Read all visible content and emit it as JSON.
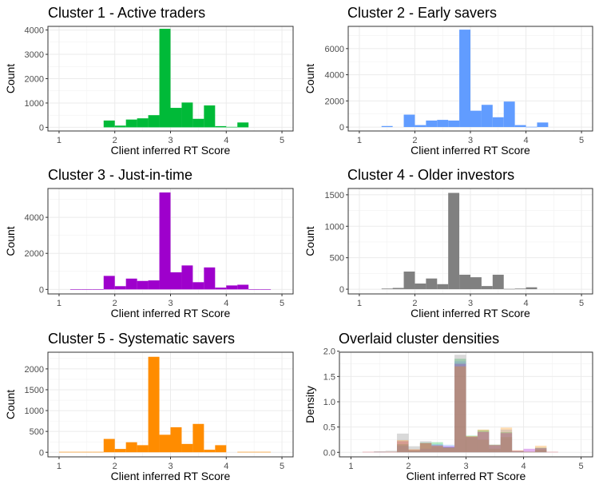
{
  "chart_data": [
    {
      "type": "bar",
      "title": "Cluster 1 - Active traders",
      "xlabel": "Client inferred RT Score",
      "ylabel": "Count",
      "color": "#00BA38",
      "xlim": [
        0.8,
        5.2
      ],
      "ylim": [
        -150,
        4150
      ],
      "xticks": [
        1,
        2,
        3,
        4,
        5
      ],
      "yticks": [
        0,
        1000,
        2000,
        3000,
        4000
      ],
      "ytick_labels": [
        "0",
        "1000",
        "2000",
        "3000",
        "4000"
      ],
      "bin_width": 0.2,
      "bins": [
        1.9,
        2.1,
        2.3,
        2.5,
        2.7,
        2.9,
        3.1,
        3.3,
        3.5,
        3.7,
        3.9,
        4.1,
        4.3,
        4.5
      ],
      "values": [
        280,
        70,
        320,
        370,
        500,
        4050,
        800,
        1020,
        350,
        900,
        50,
        20,
        200,
        0
      ]
    },
    {
      "type": "bar",
      "title": "Cluster 2 - Early savers",
      "xlabel": "Client inferred RT Score",
      "ylabel": "Count",
      "color": "#619CFF",
      "xlim": [
        0.8,
        5.2
      ],
      "ylim": [
        -300,
        7700
      ],
      "xticks": [
        1,
        2,
        3,
        4,
        5
      ],
      "yticks": [
        0,
        2000,
        4000,
        6000
      ],
      "ytick_labels": [
        "0",
        "2000",
        "4000",
        "6000"
      ],
      "bin_width": 0.2,
      "bins": [
        1.5,
        1.7,
        1.9,
        2.1,
        2.3,
        2.5,
        2.7,
        2.9,
        3.1,
        3.3,
        3.5,
        3.7,
        3.9,
        4.1,
        4.3,
        4.5
      ],
      "values": [
        80,
        0,
        950,
        150,
        500,
        550,
        500,
        7450,
        1250,
        1700,
        750,
        1950,
        150,
        20,
        350,
        0
      ]
    },
    {
      "type": "bar",
      "title": "Cluster 3 - Just-in-time",
      "xlabel": "Client inferred RT Score",
      "ylabel": "Count",
      "color": "#9E00CC",
      "xlim": [
        0.8,
        5.2
      ],
      "ylim": [
        -250,
        5600
      ],
      "xticks": [
        1,
        2,
        3,
        4,
        5
      ],
      "yticks": [
        0,
        2000,
        4000
      ],
      "ytick_labels": [
        "0",
        "2000",
        "4000"
      ],
      "bin_width": 0.2,
      "bins": [
        1.3,
        1.5,
        1.7,
        1.9,
        2.1,
        2.3,
        2.5,
        2.7,
        2.9,
        3.1,
        3.3,
        3.5,
        3.7,
        3.9,
        4.1,
        4.3,
        4.5,
        4.7
      ],
      "values": [
        15,
        15,
        15,
        750,
        180,
        600,
        470,
        500,
        5380,
        950,
        1330,
        400,
        1220,
        100,
        220,
        260,
        15,
        15
      ]
    },
    {
      "type": "bar",
      "title": "Cluster 4 - Older investors",
      "xlabel": "Client inferred RT Score",
      "ylabel": "Count",
      "color": "#808080",
      "xlim": [
        0.8,
        5.2
      ],
      "ylim": [
        -75,
        1600
      ],
      "xticks": [
        1,
        2,
        3,
        4,
        5
      ],
      "yticks": [
        0,
        500,
        1000,
        1500
      ],
      "ytick_labels": [
        "0",
        "500",
        "1000",
        "1500"
      ],
      "bin_width": 0.2,
      "bins": [
        1.5,
        1.7,
        1.9,
        2.1,
        2.3,
        2.5,
        2.7,
        2.9,
        3.1,
        3.3,
        3.5,
        3.7,
        3.9,
        4.1,
        4.3,
        4.5
      ],
      "values": [
        10,
        20,
        280,
        90,
        170,
        80,
        1530,
        230,
        190,
        50,
        230,
        5,
        10,
        30,
        0,
        0
      ]
    },
    {
      "type": "bar",
      "title": "Cluster 5 - Systematic savers",
      "xlabel": "Client inferred RT Score",
      "ylabel": "Count",
      "color": "#FF8C00",
      "xlim": [
        0.8,
        5.2
      ],
      "ylim": [
        -110,
        2400
      ],
      "xticks": [
        1,
        2,
        3,
        4,
        5
      ],
      "yticks": [
        0,
        500,
        1000,
        1500,
        2000
      ],
      "ytick_labels": [
        "0",
        "500",
        "1000",
        "1500",
        "2000"
      ],
      "bin_width": 0.2,
      "bins": [
        1.1,
        1.3,
        1.5,
        1.7,
        1.9,
        2.1,
        2.3,
        2.5,
        2.7,
        2.9,
        3.1,
        3.3,
        3.5,
        3.7,
        3.9,
        4.1,
        4.3,
        4.5,
        4.7
      ],
      "values": [
        10,
        10,
        10,
        10,
        320,
        80,
        240,
        170,
        2290,
        420,
        600,
        200,
        680,
        60,
        170,
        0,
        10,
        10,
        10
      ]
    },
    {
      "type": "bar",
      "title": "Overlaid cluster densities",
      "xlabel": "Client inferred RT Score",
      "ylabel": "Density",
      "overlay": true,
      "opacity": 0.3,
      "xlim": [
        0.8,
        5.2
      ],
      "ylim": [
        -0.09,
        1.98
      ],
      "xticks": [
        1,
        2,
        3,
        4,
        5
      ],
      "yticks": [
        0,
        0.5,
        1.0,
        1.5,
        2.0
      ],
      "ytick_labels": [
        "0.0",
        "0.5",
        "1.0",
        "1.5",
        "2.0"
      ],
      "bin_width": 0.2,
      "bins": [
        1.1,
        1.3,
        1.5,
        1.7,
        1.9,
        2.1,
        2.3,
        2.5,
        2.7,
        2.9,
        3.1,
        3.3,
        3.5,
        3.7,
        3.9,
        4.1,
        4.3,
        4.5,
        4.7
      ],
      "series": [
        {
          "color": "#00BA38",
          "values": [
            0,
            0,
            0,
            0,
            0.16,
            0.04,
            0.19,
            0.2,
            0.1,
            1.85,
            0.33,
            0.44,
            0.15,
            0.4,
            0.02,
            0.01,
            0.09,
            0,
            0
          ]
        },
        {
          "color": "#619CFF",
          "values": [
            0,
            0,
            0.01,
            0,
            0.13,
            0.02,
            0.07,
            0.16,
            0.15,
            1.8,
            0.3,
            0.42,
            0.15,
            0.45,
            0.03,
            0,
            0.09,
            0,
            0
          ]
        },
        {
          "color": "#9E00CC",
          "values": [
            0,
            0.01,
            0.01,
            0.01,
            0.22,
            0.05,
            0.18,
            0.14,
            0.12,
            1.75,
            0.31,
            0.4,
            0.14,
            0.38,
            0.03,
            0.07,
            0.08,
            0.01,
            0
          ]
        },
        {
          "color": "#808080",
          "values": [
            0,
            0,
            0.02,
            0.03,
            0.37,
            0.12,
            0.22,
            0.11,
            0.1,
            1.93,
            0.3,
            0.25,
            0.07,
            0.3,
            0.01,
            0.01,
            0.05,
            0,
            0
          ]
        },
        {
          "color": "#FF8C00",
          "values": [
            0,
            0.01,
            0.01,
            0.01,
            0.24,
            0.06,
            0.18,
            0.13,
            0.09,
            1.7,
            0.32,
            0.45,
            0.15,
            0.49,
            0.04,
            0.01,
            0.13,
            0.01,
            0
          ]
        }
      ]
    }
  ]
}
